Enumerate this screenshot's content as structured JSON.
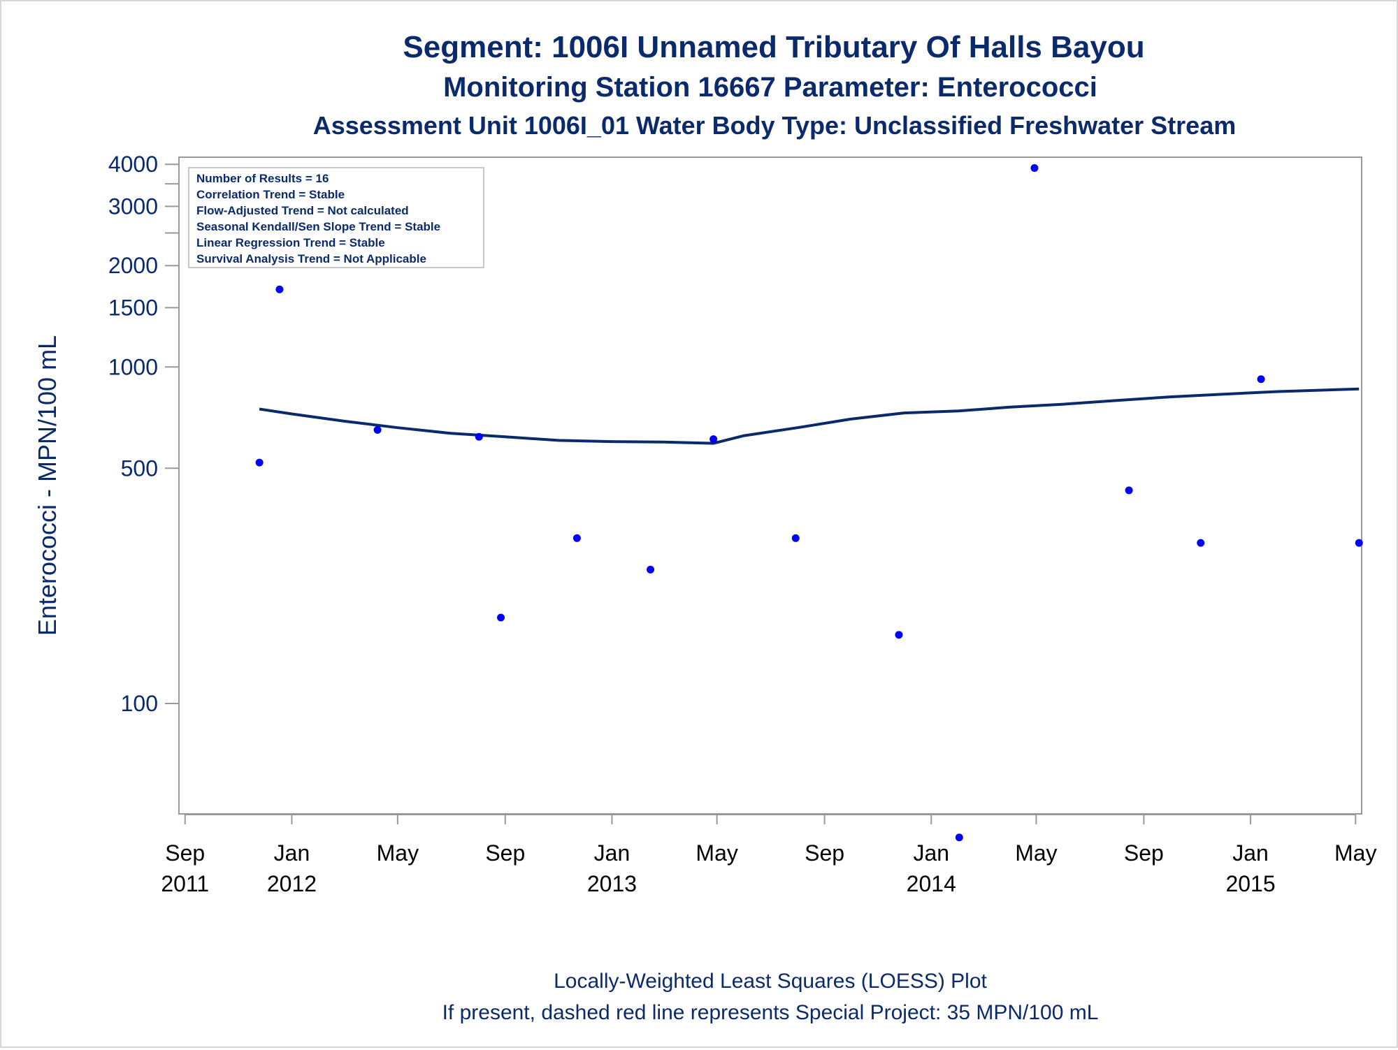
{
  "chart_data": {
    "type": "scatter",
    "title": "Segment: 1006I  Unnamed Tributary Of Halls Bayou",
    "subtitle": "Monitoring Station 16667 Parameter: Enterococci",
    "subtitle2": "Assessment Unit 1006I_01   Water Body Type: Unclassified Freshwater Stream",
    "ylabel": "Enterococci - MPN/100 mL",
    "xlabel": "",
    "yscale": "log",
    "ylim": [
      47,
      4200
    ],
    "xlim": [
      "2011-08-25",
      "2015-05-08"
    ],
    "yticks": [
      {
        "value": 100,
        "label": "100"
      },
      {
        "value": 500,
        "label": "500"
      },
      {
        "value": 1000,
        "label": "1000"
      },
      {
        "value": 1500,
        "label": "1500"
      },
      {
        "value": 2000,
        "label": "2000"
      },
      {
        "value": 2500,
        "label": ""
      },
      {
        "value": 3000,
        "label": "3000"
      },
      {
        "value": 3500,
        "label": ""
      },
      {
        "value": 4000,
        "label": "4000"
      }
    ],
    "xticks": [
      {
        "date": "2011-09-01",
        "month": "Sep",
        "year": "2011"
      },
      {
        "date": "2012-01-01",
        "month": "Jan",
        "year": "2012"
      },
      {
        "date": "2012-05-01",
        "month": "May",
        "year": ""
      },
      {
        "date": "2012-09-01",
        "month": "Sep",
        "year": ""
      },
      {
        "date": "2013-01-01",
        "month": "Jan",
        "year": "2013"
      },
      {
        "date": "2013-05-01",
        "month": "May",
        "year": ""
      },
      {
        "date": "2013-09-01",
        "month": "Sep",
        "year": ""
      },
      {
        "date": "2014-01-01",
        "month": "Jan",
        "year": "2014"
      },
      {
        "date": "2014-05-01",
        "month": "May",
        "year": ""
      },
      {
        "date": "2014-09-01",
        "month": "Sep",
        "year": ""
      },
      {
        "date": "2015-01-01",
        "month": "Jan",
        "year": "2015"
      },
      {
        "date": "2015-05-01",
        "month": "May",
        "year": ""
      }
    ],
    "series": [
      {
        "type": "scatter",
        "color": "#0000ff",
        "points": [
          {
            "x": "2011-11-25",
            "y": 520
          },
          {
            "x": "2011-12-18",
            "y": 1700
          },
          {
            "x": "2012-04-08",
            "y": 650
          },
          {
            "x": "2012-08-02",
            "y": 620
          },
          {
            "x": "2012-08-27",
            "y": 180
          },
          {
            "x": "2012-11-22",
            "y": 310
          },
          {
            "x": "2013-02-14",
            "y": 250
          },
          {
            "x": "2013-04-27",
            "y": 610
          },
          {
            "x": "2013-07-30",
            "y": 310
          },
          {
            "x": "2013-11-25",
            "y": 160
          },
          {
            "x": "2014-02-02",
            "y": 40
          },
          {
            "x": "2014-04-29",
            "y": 3900
          },
          {
            "x": "2014-08-15",
            "y": 430
          },
          {
            "x": "2014-11-05",
            "y": 300
          },
          {
            "x": "2015-01-13",
            "y": 920
          },
          {
            "x": "2015-05-05",
            "y": 300
          }
        ]
      },
      {
        "type": "line",
        "color": "#0b2a6b",
        "points": [
          {
            "x": "2011-11-25",
            "y": 750
          },
          {
            "x": "2012-01-01",
            "y": 725
          },
          {
            "x": "2012-03-01",
            "y": 690
          },
          {
            "x": "2012-05-01",
            "y": 660
          },
          {
            "x": "2012-07-01",
            "y": 635
          },
          {
            "x": "2012-09-01",
            "y": 620
          },
          {
            "x": "2012-11-01",
            "y": 605
          },
          {
            "x": "2013-01-01",
            "y": 600
          },
          {
            "x": "2013-03-01",
            "y": 598
          },
          {
            "x": "2013-04-27",
            "y": 593
          },
          {
            "x": "2013-06-01",
            "y": 625
          },
          {
            "x": "2013-08-01",
            "y": 660
          },
          {
            "x": "2013-10-01",
            "y": 700
          },
          {
            "x": "2013-12-01",
            "y": 730
          },
          {
            "x": "2014-02-01",
            "y": 740
          },
          {
            "x": "2014-04-01",
            "y": 760
          },
          {
            "x": "2014-06-01",
            "y": 775
          },
          {
            "x": "2014-08-01",
            "y": 795
          },
          {
            "x": "2014-10-01",
            "y": 815
          },
          {
            "x": "2014-12-01",
            "y": 830
          },
          {
            "x": "2015-02-01",
            "y": 845
          },
          {
            "x": "2015-05-05",
            "y": 860
          }
        ]
      }
    ]
  },
  "stats_box": [
    "Number of Results = 16",
    "Correlation Trend = Stable",
    "Flow-Adjusted Trend = Not calculated",
    "Seasonal Kendall/Sen Slope Trend = Stable",
    "Linear Regression Trend = Stable",
    "Survival Analysis Trend = Not Applicable"
  ],
  "footnotes": [
    "Locally-Weighted Least Squares (LOESS) Plot",
    "If present, dashed red line represents Special Project: 35 MPN/100 mL"
  ]
}
